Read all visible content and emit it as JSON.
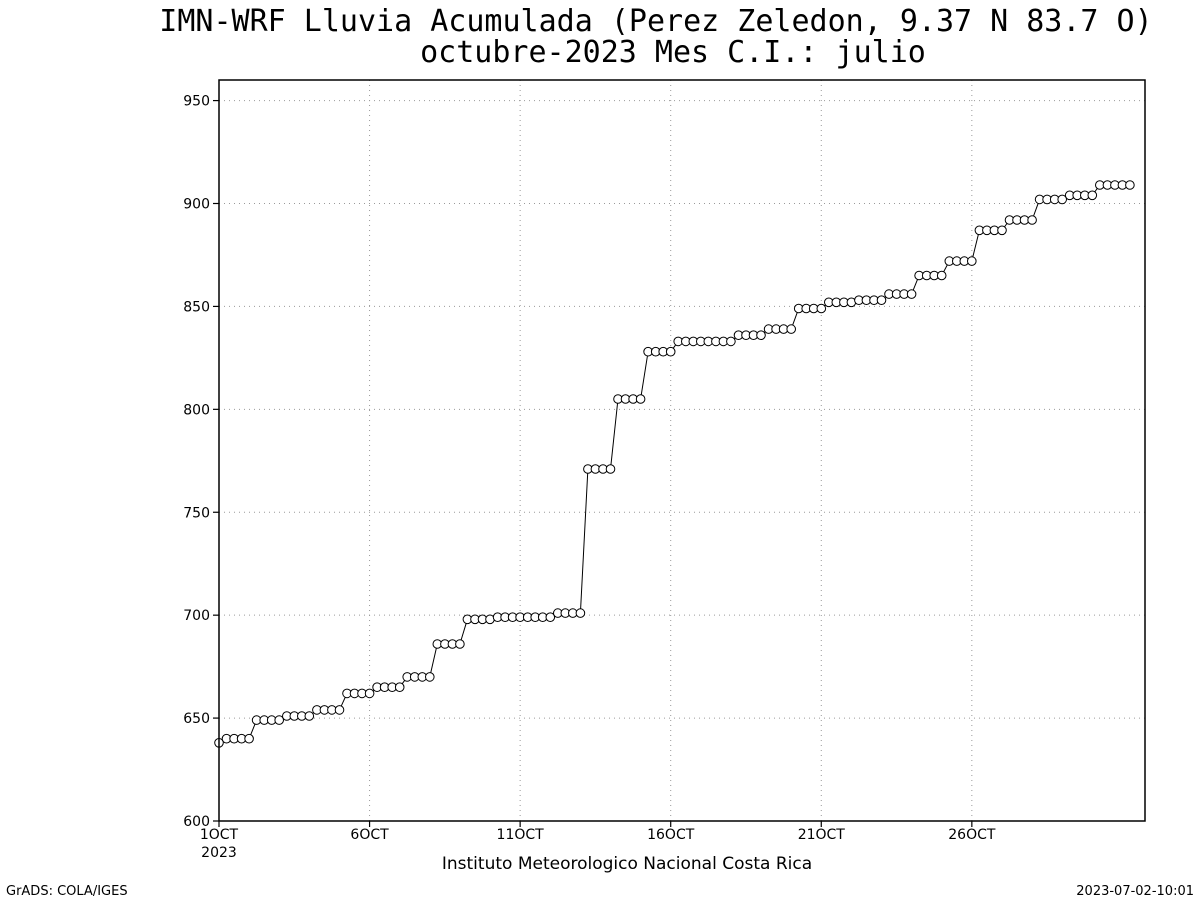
{
  "chart_data": {
    "type": "line",
    "title": "IMN-WRF  Lluvia Acumulada  (Perez Zeledon, 9.37  N 83.7  O)",
    "subtitle": "octubre-2023 Mes C.I.: julio",
    "xlabel": "Instituto Meteorologico Nacional Costa Rica",
    "ylabel": "",
    "xlim": [
      0,
      30.75
    ],
    "ylim": [
      600,
      960
    ],
    "yticks": [
      600,
      650,
      700,
      750,
      800,
      850,
      900,
      950
    ],
    "xtick_labels": [
      {
        "x": 0,
        "label": "1OCT",
        "sub": "2023"
      },
      {
        "x": 5,
        "label": "6OCT"
      },
      {
        "x": 10,
        "label": "11OCT"
      },
      {
        "x": 15,
        "label": "16OCT"
      },
      {
        "x": 20,
        "label": "21OCT"
      },
      {
        "x": 25,
        "label": "26OCT"
      }
    ],
    "grid": true,
    "marker": "circle",
    "x_step_days": 0.25,
    "series": [
      {
        "values": [
          638,
          640,
          640,
          640,
          640,
          649,
          649,
          649,
          649,
          651,
          651,
          651,
          651,
          654,
          654,
          654,
          654,
          662,
          662,
          662,
          662,
          665,
          665,
          665,
          665,
          670,
          670,
          670,
          670,
          686,
          686,
          686,
          686,
          698,
          698,
          698,
          698,
          699,
          699,
          699,
          699,
          699,
          699,
          699,
          699,
          701,
          701,
          701,
          701,
          771,
          771,
          771,
          771,
          805,
          805,
          805,
          805,
          828,
          828,
          828,
          828,
          833,
          833,
          833,
          833,
          833,
          833,
          833,
          833,
          836,
          836,
          836,
          836,
          839,
          839,
          839,
          839,
          849,
          849,
          849,
          849,
          852,
          852,
          852,
          852,
          853,
          853,
          853,
          853,
          856,
          856,
          856,
          856,
          865,
          865,
          865,
          865,
          872,
          872,
          872,
          872,
          887,
          887,
          887,
          887,
          892,
          892,
          892,
          892,
          902,
          902,
          902,
          902,
          904,
          904,
          904,
          904,
          909,
          909,
          909,
          909,
          909
        ]
      }
    ]
  },
  "footer": {
    "left": "GrADS: COLA/IGES",
    "right": "2023-07-02-10:01"
  }
}
